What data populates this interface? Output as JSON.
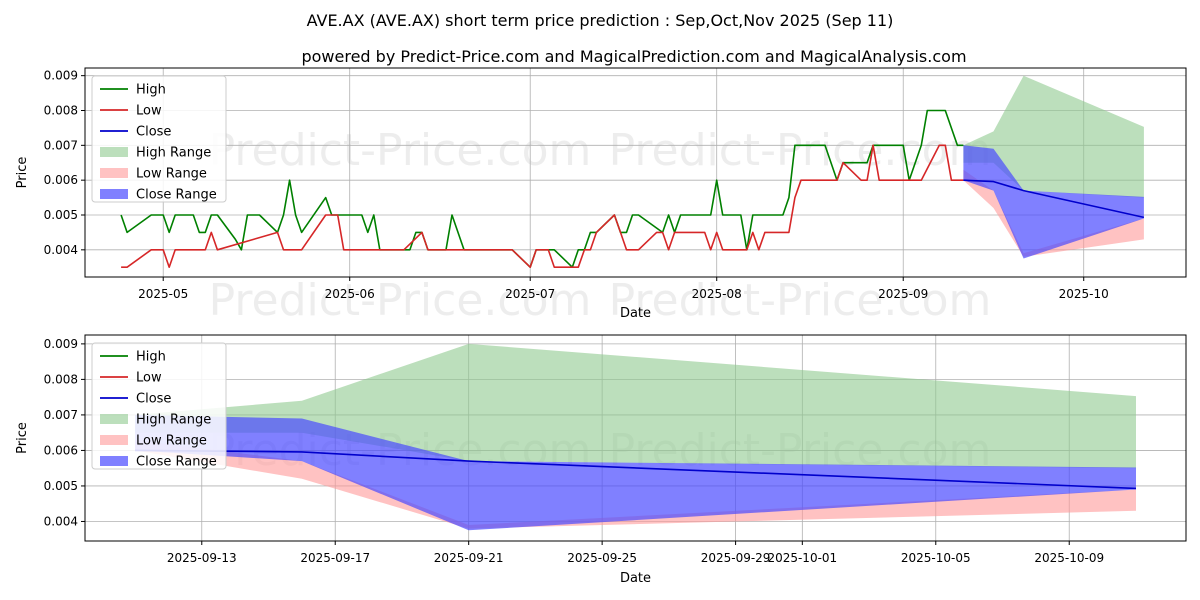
{
  "title": "AVE.AX (AVE.AX) short term price prediction : Sep,Oct,Nov 2025 (Sep 11)",
  "subtitle": "powered by Predict-Price.com and MagicalPrediction.com and MagicalAnalysis.com",
  "watermark": "Predict-Price.com",
  "colors": {
    "high": "#008000",
    "low": "#d62728",
    "close": "#0000cc",
    "high_range": "#8fc98f",
    "low_range": "#ff9a9a",
    "close_range": "#4a4aff"
  },
  "chart_data": [
    {
      "type": "line",
      "xlabel": "Date",
      "ylabel": "Price",
      "xlim": [
        "2025-04-18",
        "2025-10-18"
      ],
      "ylim": [
        0.00322,
        0.00922
      ],
      "xticks": [
        "2025-05-01",
        "2025-06-01",
        "2025-07-01",
        "2025-08-01",
        "2025-09-01",
        "2025-10-01"
      ],
      "xtick_labels": [
        "2025-05",
        "2025-06",
        "2025-07",
        "2025-08",
        "2025-09",
        "2025-10"
      ],
      "yticks": [
        0.004,
        0.005,
        0.006,
        0.007,
        0.008,
        0.009
      ],
      "ytick_labels": [
        "0.004",
        "0.005",
        "0.006",
        "0.007",
        "0.008",
        "0.009"
      ],
      "grid": true,
      "legend": "upper left",
      "legend_entries": [
        "High",
        "Low",
        "Close",
        "High Range",
        "Low Range",
        "Close Range"
      ],
      "series": [
        {
          "name": "High",
          "points": [
            [
              "2025-04-24",
              0.005
            ],
            [
              "2025-04-25",
              0.0045
            ],
            [
              "2025-04-29",
              0.005
            ],
            [
              "2025-05-01",
              0.005
            ],
            [
              "2025-05-02",
              0.0045
            ],
            [
              "2025-05-03",
              0.005
            ],
            [
              "2025-05-06",
              0.005
            ],
            [
              "2025-05-07",
              0.0045
            ],
            [
              "2025-05-08",
              0.0045
            ],
            [
              "2025-05-09",
              0.005
            ],
            [
              "2025-05-10",
              0.005
            ],
            [
              "2025-05-13",
              0.0043
            ],
            [
              "2025-05-14",
              0.004
            ],
            [
              "2025-05-15",
              0.005
            ],
            [
              "2025-05-17",
              0.005
            ],
            [
              "2025-05-20",
              0.0045
            ],
            [
              "2025-05-21",
              0.005
            ],
            [
              "2025-05-22",
              0.006
            ],
            [
              "2025-05-23",
              0.005
            ],
            [
              "2025-05-24",
              0.0045
            ],
            [
              "2025-05-28",
              0.0055
            ],
            [
              "2025-05-29",
              0.005
            ],
            [
              "2025-06-03",
              0.005
            ],
            [
              "2025-06-04",
              0.0045
            ],
            [
              "2025-06-05",
              0.005
            ],
            [
              "2025-06-06",
              0.004
            ],
            [
              "2025-06-10",
              0.004
            ],
            [
              "2025-06-11",
              0.004
            ],
            [
              "2025-06-12",
              0.0045
            ],
            [
              "2025-06-13",
              0.0045
            ],
            [
              "2025-06-14",
              0.004
            ],
            [
              "2025-06-17",
              0.004
            ],
            [
              "2025-06-18",
              0.005
            ],
            [
              "2025-06-20",
              0.004
            ],
            [
              "2025-06-28",
              0.004
            ],
            [
              "2025-07-01",
              0.0035
            ],
            [
              "2025-07-02",
              0.004
            ],
            [
              "2025-07-05",
              0.004
            ],
            [
              "2025-07-08",
              0.0035
            ],
            [
              "2025-07-09",
              0.004
            ],
            [
              "2025-07-10",
              0.004
            ],
            [
              "2025-07-11",
              0.0045
            ],
            [
              "2025-07-12",
              0.0045
            ],
            [
              "2025-07-15",
              0.005
            ],
            [
              "2025-07-16",
              0.0045
            ],
            [
              "2025-07-17",
              0.0045
            ],
            [
              "2025-07-18",
              0.005
            ],
            [
              "2025-07-19",
              0.005
            ],
            [
              "2025-07-23",
              0.0045
            ],
            [
              "2025-07-24",
              0.005
            ],
            [
              "2025-07-25",
              0.0045
            ],
            [
              "2025-07-26",
              0.005
            ],
            [
              "2025-07-31",
              0.005
            ],
            [
              "2025-08-01",
              0.006
            ],
            [
              "2025-08-02",
              0.005
            ],
            [
              "2025-08-05",
              0.005
            ],
            [
              "2025-08-06",
              0.004
            ],
            [
              "2025-08-07",
              0.005
            ],
            [
              "2025-08-12",
              0.005
            ],
            [
              "2025-08-13",
              0.0055
            ],
            [
              "2025-08-14",
              0.007
            ],
            [
              "2025-08-19",
              0.007
            ],
            [
              "2025-08-21",
              0.006
            ],
            [
              "2025-08-22",
              0.0065
            ],
            [
              "2025-08-26",
              0.0065
            ],
            [
              "2025-08-27",
              0.007
            ],
            [
              "2025-08-29",
              0.007
            ],
            [
              "2025-09-01",
              0.007
            ],
            [
              "2025-09-02",
              0.006
            ],
            [
              "2025-09-04",
              0.007
            ],
            [
              "2025-09-05",
              0.008
            ],
            [
              "2025-09-08",
              0.008
            ],
            [
              "2025-09-10",
              0.007
            ],
            [
              "2025-09-11",
              0.007
            ]
          ]
        },
        {
          "name": "Low",
          "points": [
            [
              "2025-04-24",
              0.0035
            ],
            [
              "2025-04-25",
              0.0035
            ],
            [
              "2025-04-29",
              0.004
            ],
            [
              "2025-05-01",
              0.004
            ],
            [
              "2025-05-02",
              0.0035
            ],
            [
              "2025-05-03",
              0.004
            ],
            [
              "2025-05-08",
              0.004
            ],
            [
              "2025-05-09",
              0.0045
            ],
            [
              "2025-05-10",
              0.004
            ],
            [
              "2025-05-20",
              0.0045
            ],
            [
              "2025-05-21",
              0.004
            ],
            [
              "2025-05-24",
              0.004
            ],
            [
              "2025-05-28",
              0.005
            ],
            [
              "2025-05-30",
              0.005
            ],
            [
              "2025-05-31",
              0.004
            ],
            [
              "2025-06-10",
              0.004
            ],
            [
              "2025-06-13",
              0.0045
            ],
            [
              "2025-06-14",
              0.004
            ],
            [
              "2025-06-28",
              0.004
            ],
            [
              "2025-07-01",
              0.0035
            ],
            [
              "2025-07-02",
              0.004
            ],
            [
              "2025-07-04",
              0.004
            ],
            [
              "2025-07-05",
              0.0035
            ],
            [
              "2025-07-09",
              0.0035
            ],
            [
              "2025-07-10",
              0.004
            ],
            [
              "2025-07-11",
              0.004
            ],
            [
              "2025-07-12",
              0.0045
            ],
            [
              "2025-07-15",
              0.005
            ],
            [
              "2025-07-16",
              0.0045
            ],
            [
              "2025-07-17",
              0.004
            ],
            [
              "2025-07-19",
              0.004
            ],
            [
              "2025-07-22",
              0.0045
            ],
            [
              "2025-07-23",
              0.0045
            ],
            [
              "2025-07-24",
              0.004
            ],
            [
              "2025-07-25",
              0.0045
            ],
            [
              "2025-07-30",
              0.0045
            ],
            [
              "2025-07-31",
              0.004
            ],
            [
              "2025-08-01",
              0.0045
            ],
            [
              "2025-08-02",
              0.004
            ],
            [
              "2025-08-06",
              0.004
            ],
            [
              "2025-08-07",
              0.0045
            ],
            [
              "2025-08-08",
              0.004
            ],
            [
              "2025-08-09",
              0.0045
            ],
            [
              "2025-08-13",
              0.0045
            ],
            [
              "2025-08-14",
              0.0055
            ],
            [
              "2025-08-15",
              0.006
            ],
            [
              "2025-08-21",
              0.006
            ],
            [
              "2025-08-22",
              0.0065
            ],
            [
              "2025-08-25",
              0.006
            ],
            [
              "2025-08-26",
              0.006
            ],
            [
              "2025-08-27",
              0.007
            ],
            [
              "2025-08-28",
              0.006
            ],
            [
              "2025-09-01",
              0.006
            ],
            [
              "2025-09-04",
              0.006
            ],
            [
              "2025-09-07",
              0.007
            ],
            [
              "2025-09-08",
              0.007
            ],
            [
              "2025-09-09",
              0.006
            ],
            [
              "2025-09-11",
              0.006
            ]
          ]
        },
        {
          "name": "Close",
          "points": [
            [
              "2025-09-11",
              0.006
            ],
            [
              "2025-09-16",
              0.00596
            ],
            [
              "2025-09-21",
              0.0057
            ],
            [
              "2025-10-11",
              0.00493
            ]
          ]
        },
        {
          "name": "High Range",
          "kind": "band",
          "points": [
            [
              "2025-09-11",
              0.0065,
              0.007
            ],
            [
              "2025-09-16",
              0.0065,
              0.0074
            ],
            [
              "2025-09-21",
              0.0057,
              0.009
            ],
            [
              "2025-10-11",
              0.0055,
              0.00753
            ]
          ]
        },
        {
          "name": "Low Range",
          "kind": "band",
          "points": [
            [
              "2025-09-11",
              0.006,
              0.0063
            ],
            [
              "2025-09-16",
              0.0052,
              0.0057
            ],
            [
              "2025-09-21",
              0.0038,
              0.0039
            ],
            [
              "2025-10-11",
              0.0043,
              0.0049
            ]
          ]
        },
        {
          "name": "Close Range",
          "kind": "band",
          "points": [
            [
              "2025-09-11",
              0.006,
              0.007
            ],
            [
              "2025-09-16",
              0.0057,
              0.0069
            ],
            [
              "2025-09-21",
              0.00375,
              0.0057
            ],
            [
              "2025-10-11",
              0.0049,
              0.00552
            ]
          ]
        }
      ]
    },
    {
      "type": "line",
      "xlabel": "Date",
      "ylabel": "Price",
      "xlim": [
        "2025-09-09T12:00",
        "2025-10-12T12:00"
      ],
      "ylim": [
        0.00345,
        0.00925
      ],
      "xticks": [
        "2025-09-13",
        "2025-09-17",
        "2025-09-21",
        "2025-09-25",
        "2025-09-29",
        "2025-10-01",
        "2025-10-05",
        "2025-10-09"
      ],
      "xtick_labels": [
        "2025-09-13",
        "2025-09-17",
        "2025-09-21",
        "2025-09-25",
        "2025-09-29",
        "2025-10-01",
        "2025-10-05",
        "2025-10-09"
      ],
      "yticks": [
        0.004,
        0.005,
        0.006,
        0.007,
        0.008,
        0.009
      ],
      "ytick_labels": [
        "0.004",
        "0.005",
        "0.006",
        "0.007",
        "0.008",
        "0.009"
      ],
      "grid": true,
      "legend": "upper left",
      "legend_entries": [
        "High",
        "Low",
        "Close",
        "High Range",
        "Low Range",
        "Close Range"
      ],
      "series": [
        {
          "name": "Close",
          "points": [
            [
              "2025-09-11",
              0.006
            ],
            [
              "2025-09-16",
              0.00596
            ],
            [
              "2025-09-21",
              0.0057
            ],
            [
              "2025-10-11",
              0.00493
            ]
          ]
        },
        {
          "name": "High Range",
          "kind": "band",
          "points": [
            [
              "2025-09-11",
              0.0065,
              0.007
            ],
            [
              "2025-09-16",
              0.0065,
              0.0074
            ],
            [
              "2025-09-21",
              0.0057,
              0.009
            ],
            [
              "2025-10-11",
              0.0055,
              0.00753
            ]
          ]
        },
        {
          "name": "Low Range",
          "kind": "band",
          "points": [
            [
              "2025-09-11",
              0.006,
              0.0063
            ],
            [
              "2025-09-16",
              0.0052,
              0.0057
            ],
            [
              "2025-09-21",
              0.0038,
              0.0039
            ],
            [
              "2025-10-11",
              0.0043,
              0.0049
            ]
          ]
        },
        {
          "name": "Close Range",
          "kind": "band",
          "points": [
            [
              "2025-09-11",
              0.006,
              0.007
            ],
            [
              "2025-09-16",
              0.0057,
              0.0069
            ],
            [
              "2025-09-21",
              0.00375,
              0.0057
            ],
            [
              "2025-10-11",
              0.0049,
              0.00552
            ]
          ]
        }
      ]
    }
  ]
}
